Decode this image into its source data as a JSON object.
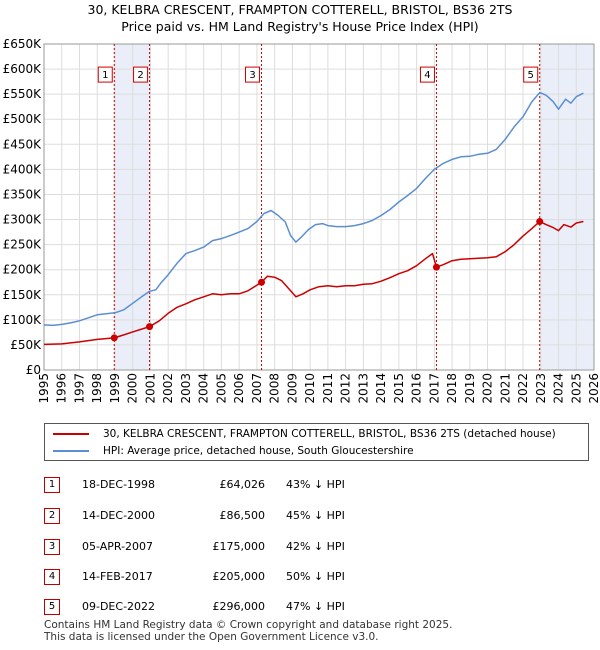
{
  "chart_data": {
    "type": "line",
    "title": "30, KELBRA CRESCENT, FRAMPTON COTTERELL, BRISTOL, BS36 2TS",
    "subtitle": "Price paid vs. HM Land Registry's House Price Index (HPI)",
    "xlim": [
      1995,
      2026
    ],
    "ylim": [
      0,
      650000
    ],
    "x_ticks": [
      "1995",
      "1996",
      "1997",
      "1998",
      "1999",
      "2000",
      "2001",
      "2002",
      "2003",
      "2004",
      "2005",
      "2006",
      "2007",
      "2008",
      "2009",
      "2010",
      "2011",
      "2012",
      "2013",
      "2014",
      "2015",
      "2016",
      "2017",
      "2018",
      "2019",
      "2020",
      "2021",
      "2022",
      "2023",
      "2024",
      "2025",
      "2026"
    ],
    "y_ticks": [
      {
        "value": 0,
        "label": "£0"
      },
      {
        "value": 50000,
        "label": "£50K"
      },
      {
        "value": 100000,
        "label": "£100K"
      },
      {
        "value": 150000,
        "label": "£150K"
      },
      {
        "value": 200000,
        "label": "£200K"
      },
      {
        "value": 250000,
        "label": "£250K"
      },
      {
        "value": 300000,
        "label": "£300K"
      },
      {
        "value": 350000,
        "label": "£350K"
      },
      {
        "value": 400000,
        "label": "£400K"
      },
      {
        "value": 450000,
        "label": "£450K"
      },
      {
        "value": 500000,
        "label": "£500K"
      },
      {
        "value": 550000,
        "label": "£550K"
      },
      {
        "value": 600000,
        "label": "£600K"
      },
      {
        "value": 650000,
        "label": "£650K"
      }
    ],
    "series": [
      {
        "name": "30, KELBRA CRESCENT, FRAMPTON COTTERELL, BRISTOL, BS36 2TS (detached house)",
        "color": "#cc0000",
        "points": [
          [
            1995.0,
            51000
          ],
          [
            1996.0,
            52000
          ],
          [
            1997.0,
            56000
          ],
          [
            1998.0,
            61000
          ],
          [
            1998.96,
            64026
          ],
          [
            1999.5,
            70000
          ],
          [
            2000.0,
            76000
          ],
          [
            2000.95,
            86500
          ],
          [
            2001.5,
            98000
          ],
          [
            2002.0,
            113000
          ],
          [
            2002.5,
            125000
          ],
          [
            2003.0,
            132000
          ],
          [
            2003.5,
            140000
          ],
          [
            2004.0,
            146000
          ],
          [
            2004.5,
            152000
          ],
          [
            2005.0,
            150000
          ],
          [
            2005.5,
            152000
          ],
          [
            2006.0,
            152000
          ],
          [
            2006.5,
            158000
          ],
          [
            2007.26,
            175000
          ],
          [
            2007.6,
            187000
          ],
          [
            2008.0,
            185000
          ],
          [
            2008.4,
            178000
          ],
          [
            2008.8,
            162000
          ],
          [
            2009.2,
            146000
          ],
          [
            2009.6,
            152000
          ],
          [
            2010.0,
            160000
          ],
          [
            2010.5,
            166000
          ],
          [
            2011.0,
            168000
          ],
          [
            2011.5,
            166000
          ],
          [
            2012.0,
            168000
          ],
          [
            2012.5,
            168000
          ],
          [
            2013.0,
            171000
          ],
          [
            2013.5,
            172000
          ],
          [
            2014.0,
            177000
          ],
          [
            2014.5,
            184000
          ],
          [
            2015.0,
            192000
          ],
          [
            2015.5,
            198000
          ],
          [
            2016.0,
            208000
          ],
          [
            2016.5,
            222000
          ],
          [
            2016.9,
            232000
          ],
          [
            2017.12,
            205000
          ],
          [
            2017.5,
            210000
          ],
          [
            2018.0,
            218000
          ],
          [
            2018.5,
            221000
          ],
          [
            2019.0,
            222000
          ],
          [
            2019.5,
            223000
          ],
          [
            2020.0,
            224000
          ],
          [
            2020.5,
            226000
          ],
          [
            2021.0,
            236000
          ],
          [
            2021.5,
            250000
          ],
          [
            2022.0,
            267000
          ],
          [
            2022.5,
            282000
          ],
          [
            2022.94,
            296000
          ],
          [
            2023.3,
            290000
          ],
          [
            2023.7,
            284000
          ],
          [
            2024.0,
            278000
          ],
          [
            2024.3,
            290000
          ],
          [
            2024.7,
            285000
          ],
          [
            2025.0,
            293000
          ],
          [
            2025.4,
            296000
          ]
        ]
      },
      {
        "name": "HPI: Average price, detached house, South Gloucestershire",
        "color": "#5b8fd1",
        "points": [
          [
            1995.0,
            90000
          ],
          [
            1995.5,
            89000
          ],
          [
            1996.0,
            91000
          ],
          [
            1996.5,
            94000
          ],
          [
            1997.0,
            98000
          ],
          [
            1997.5,
            104000
          ],
          [
            1998.0,
            110000
          ],
          [
            1998.5,
            112000
          ],
          [
            1999.0,
            114000
          ],
          [
            1999.5,
            120000
          ],
          [
            2000.0,
            133000
          ],
          [
            2000.5,
            146000
          ],
          [
            2000.95,
            157000
          ],
          [
            2001.3,
            160000
          ],
          [
            2001.6,
            174000
          ],
          [
            2002.0,
            190000
          ],
          [
            2002.5,
            213000
          ],
          [
            2003.0,
            232000
          ],
          [
            2003.5,
            238000
          ],
          [
            2004.0,
            245000
          ],
          [
            2004.5,
            258000
          ],
          [
            2005.0,
            262000
          ],
          [
            2005.5,
            268000
          ],
          [
            2006.0,
            275000
          ],
          [
            2006.5,
            282000
          ],
          [
            2007.0,
            296000
          ],
          [
            2007.4,
            312000
          ],
          [
            2007.8,
            318000
          ],
          [
            2008.2,
            308000
          ],
          [
            2008.6,
            295000
          ],
          [
            2008.9,
            268000
          ],
          [
            2009.2,
            255000
          ],
          [
            2009.5,
            265000
          ],
          [
            2009.9,
            280000
          ],
          [
            2010.3,
            290000
          ],
          [
            2010.7,
            292000
          ],
          [
            2011.0,
            288000
          ],
          [
            2011.5,
            286000
          ],
          [
            2012.0,
            286000
          ],
          [
            2012.5,
            288000
          ],
          [
            2013.0,
            292000
          ],
          [
            2013.5,
            298000
          ],
          [
            2014.0,
            308000
          ],
          [
            2014.5,
            320000
          ],
          [
            2015.0,
            335000
          ],
          [
            2015.5,
            348000
          ],
          [
            2016.0,
            362000
          ],
          [
            2016.5,
            382000
          ],
          [
            2017.0,
            400000
          ],
          [
            2017.5,
            412000
          ],
          [
            2018.0,
            420000
          ],
          [
            2018.5,
            425000
          ],
          [
            2019.0,
            426000
          ],
          [
            2019.5,
            430000
          ],
          [
            2020.0,
            432000
          ],
          [
            2020.5,
            440000
          ],
          [
            2021.0,
            460000
          ],
          [
            2021.5,
            485000
          ],
          [
            2022.0,
            505000
          ],
          [
            2022.5,
            535000
          ],
          [
            2022.94,
            553000
          ],
          [
            2023.3,
            548000
          ],
          [
            2023.7,
            535000
          ],
          [
            2024.0,
            520000
          ],
          [
            2024.4,
            540000
          ],
          [
            2024.7,
            532000
          ],
          [
            2025.0,
            545000
          ],
          [
            2025.4,
            552000
          ]
        ]
      }
    ],
    "sales": [
      {
        "n": "1",
        "x": 1998.96,
        "value": 64026
      },
      {
        "n": "2",
        "x": 2000.95,
        "value": 86500
      },
      {
        "n": "3",
        "x": 2007.26,
        "value": 175000
      },
      {
        "n": "4",
        "x": 2017.12,
        "value": 205000
      },
      {
        "n": "5",
        "x": 2022.94,
        "value": 296000
      }
    ],
    "sale_label_value": 590000,
    "shade_ranges": [
      [
        1998.96,
        2000.95
      ],
      [
        2022.94,
        2026
      ]
    ],
    "grid": true
  },
  "colors": {
    "red": "#cc0000",
    "blue": "#5b8fd1",
    "grid": "#dddddd",
    "shade": "#e9eef8",
    "dashed": "#cc0000"
  },
  "legend": {
    "red_label": "30, KELBRA CRESCENT, FRAMPTON COTTERELL, BRISTOL, BS36 2TS (detached house)",
    "blue_label": "HPI: Average price, detached house, South Gloucestershire"
  },
  "table": [
    {
      "n": "1",
      "date": "18-DEC-1998",
      "price": "£64,026",
      "hpi": "43% ↓ HPI"
    },
    {
      "n": "2",
      "date": "14-DEC-2000",
      "price": "£86,500",
      "hpi": "45% ↓ HPI"
    },
    {
      "n": "3",
      "date": "05-APR-2007",
      "price": "£175,000",
      "hpi": "42% ↓ HPI"
    },
    {
      "n": "4",
      "date": "14-FEB-2017",
      "price": "£205,000",
      "hpi": "50% ↓ HPI"
    },
    {
      "n": "5",
      "date": "09-DEC-2022",
      "price": "£296,000",
      "hpi": "47% ↓ HPI"
    }
  ],
  "footer": {
    "line1": "Contains HM Land Registry data © Crown copyright and database right 2025.",
    "line2": "This data is licensed under the Open Government Licence v3.0."
  }
}
